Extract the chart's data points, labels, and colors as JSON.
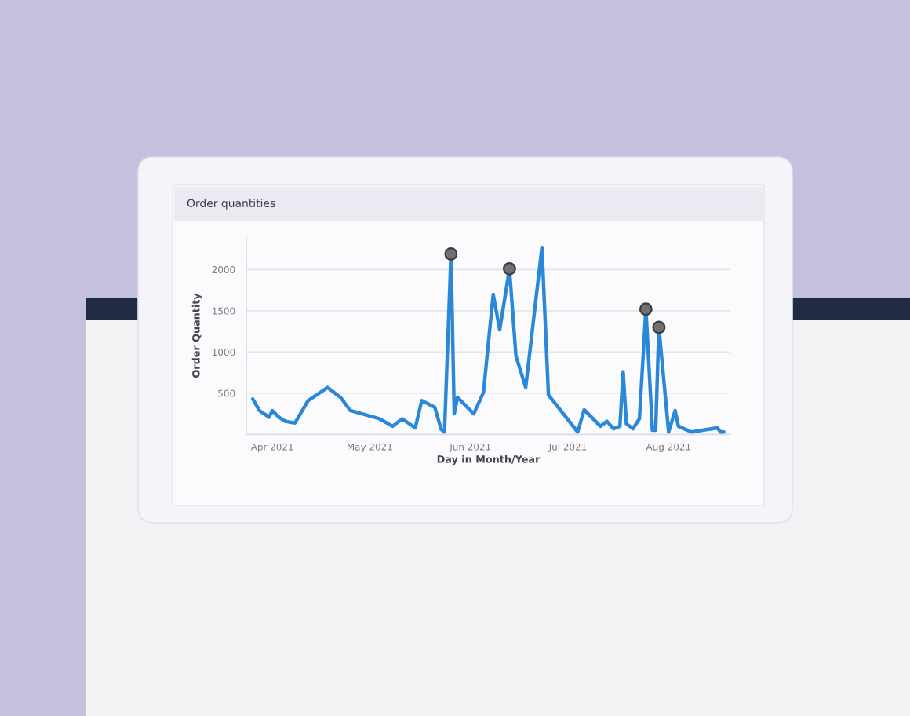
{
  "chart_data": {
    "type": "line",
    "title": "Order quantities",
    "xlabel": "Day in Month/Year",
    "ylabel": "Order Quantity",
    "x": [
      "2021-03-26",
      "2021-03-28",
      "2021-03-31",
      "2021-04-01",
      "2021-04-03",
      "2021-04-05",
      "2021-04-08",
      "2021-04-12",
      "2021-04-18",
      "2021-04-22",
      "2021-04-25",
      "2021-05-04",
      "2021-05-08",
      "2021-05-11",
      "2021-05-15",
      "2021-05-17",
      "2021-05-21",
      "2021-05-23",
      "2021-05-24",
      "2021-05-26",
      "2021-05-27",
      "2021-05-28",
      "2021-06-02",
      "2021-06-05",
      "2021-06-08",
      "2021-06-10",
      "2021-06-13",
      "2021-06-15",
      "2021-06-18",
      "2021-06-23",
      "2021-06-25",
      "2021-07-04",
      "2021-07-06",
      "2021-07-11",
      "2021-07-13",
      "2021-07-15",
      "2021-07-17",
      "2021-07-18",
      "2021-07-19",
      "2021-07-21",
      "2021-07-23",
      "2021-07-25",
      "2021-07-27",
      "2021-07-28",
      "2021-07-29",
      "2021-08-01",
      "2021-08-03",
      "2021-08-04",
      "2021-08-08",
      "2021-08-16",
      "2021-08-17",
      "2021-08-18"
    ],
    "series": [
      {
        "color": "#2b88d8",
        "marker": "none",
        "values": [
          430,
          290,
          210,
          290,
          210,
          160,
          140,
          410,
          570,
          450,
          290,
          190,
          100,
          190,
          80,
          410,
          330,
          60,
          30,
          2190,
          250,
          450,
          250,
          510,
          1700,
          1270,
          2010,
          950,
          570,
          2270,
          480,
          30,
          300,
          100,
          160,
          70,
          100,
          760,
          130,
          70,
          190,
          1520,
          50,
          50,
          1300,
          30,
          290,
          100,
          30,
          80,
          30,
          30
        ]
      },
      {
        "type": "scatter",
        "color": "#717175",
        "marker": "circle",
        "x": [
          "2021-05-26",
          "2021-06-13",
          "2021-07-25",
          "2021-07-29"
        ],
        "values": [
          2190,
          2010,
          1520,
          1300
        ]
      }
    ],
    "xlim": [
      "2021-03-24",
      "2021-08-20"
    ],
    "xticks": [
      {
        "value": "2021-04-01",
        "label": "Apr 2021"
      },
      {
        "value": "2021-05-01",
        "label": "May 2021"
      },
      {
        "value": "2021-06-01",
        "label": "Jun 2021"
      },
      {
        "value": "2021-07-01",
        "label": "Jul 2021"
      },
      {
        "value": "2021-08-01",
        "label": "Aug 2021"
      }
    ],
    "ylim": [
      0,
      2400
    ],
    "yticks": [
      500,
      1000,
      1500,
      2000
    ],
    "grid": "y",
    "line_style": "solid"
  }
}
